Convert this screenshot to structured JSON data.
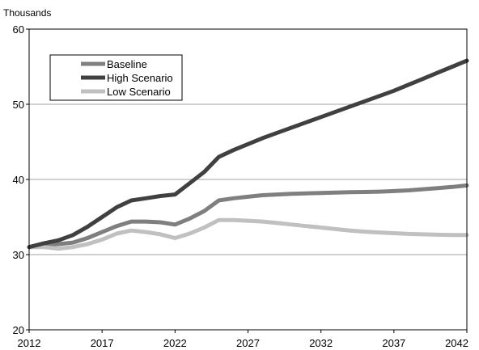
{
  "chart_data": {
    "type": "line",
    "unit_label": "Thousands",
    "xlim": [
      2012,
      2042
    ],
    "ylim": [
      20,
      60
    ],
    "x_ticks": [
      2012,
      2017,
      2022,
      2027,
      2032,
      2037,
      2042
    ],
    "y_ticks": [
      20,
      30,
      40,
      50,
      60
    ],
    "grid": "horizontal",
    "legend_position": "top-left",
    "x": [
      2012,
      2013,
      2014,
      2015,
      2016,
      2017,
      2018,
      2019,
      2020,
      2021,
      2022,
      2023,
      2024,
      2025,
      2026,
      2027,
      2028,
      2029,
      2030,
      2031,
      2032,
      2033,
      2034,
      2035,
      2036,
      2037,
      2038,
      2039,
      2040,
      2041,
      2042
    ],
    "series": [
      {
        "name": "Baseline",
        "color": "#7f7f7f",
        "values": [
          31.0,
          31.2,
          31.4,
          31.6,
          32.2,
          33.0,
          33.8,
          34.4,
          34.4,
          34.3,
          34.0,
          34.8,
          35.8,
          37.2,
          37.5,
          37.7,
          37.9,
          38.0,
          38.1,
          38.15,
          38.2,
          38.25,
          38.3,
          38.33,
          38.38,
          38.45,
          38.55,
          38.7,
          38.85,
          39.0,
          39.2
        ]
      },
      {
        "name": "High Scenario",
        "color": "#404040",
        "values": [
          31.0,
          31.5,
          31.9,
          32.6,
          33.7,
          35.0,
          36.3,
          37.2,
          37.5,
          37.8,
          38.0,
          39.5,
          41.0,
          43.0,
          43.9,
          44.7,
          45.5,
          46.2,
          46.9,
          47.6,
          48.3,
          49.0,
          49.7,
          50.4,
          51.1,
          51.8,
          52.6,
          53.4,
          54.2,
          55.0,
          55.8
        ]
      },
      {
        "name": "Low Scenario",
        "color": "#c0c0c0",
        "values": [
          31.0,
          31.0,
          30.8,
          31.0,
          31.4,
          32.0,
          32.8,
          33.2,
          33.0,
          32.7,
          32.2,
          32.8,
          33.6,
          34.6,
          34.6,
          34.5,
          34.4,
          34.2,
          34.0,
          33.8,
          33.6,
          33.4,
          33.2,
          33.05,
          32.95,
          32.85,
          32.75,
          32.7,
          32.65,
          32.6,
          32.6
        ]
      }
    ]
  }
}
